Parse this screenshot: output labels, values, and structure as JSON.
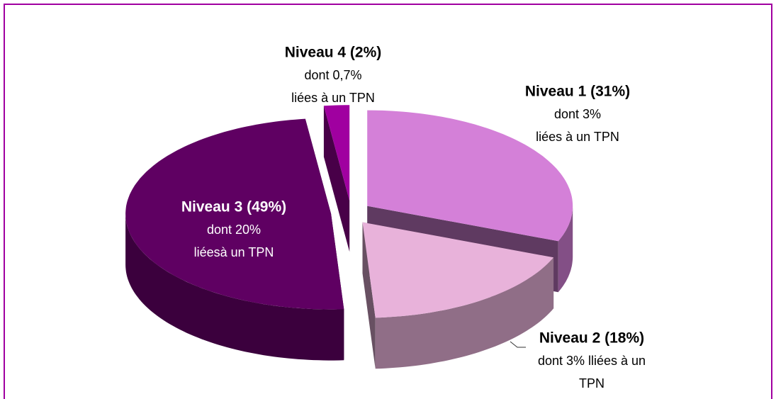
{
  "chart_data": {
    "type": "pie",
    "three_d": true,
    "exploded": true,
    "labels": [
      "Niveau 1 (31%)",
      "Niveau 2 (18%)",
      "Niveau 3 (49%)",
      "Niveau 4 (2%)"
    ],
    "values": [
      31,
      18,
      49,
      2
    ],
    "sublabels": [
      [
        "dont 3%",
        "liées à un TPN"
      ],
      [
        "dont 3% lliées à un",
        "TPN"
      ],
      [
        "dont 20%",
        "liéesà un TPN"
      ],
      [
        "dont 0,7%",
        "liées à un TPN"
      ]
    ],
    "colors": [
      "#d480d8",
      "#e8b2da",
      "#5f0062",
      "#a000a0"
    ]
  }
}
